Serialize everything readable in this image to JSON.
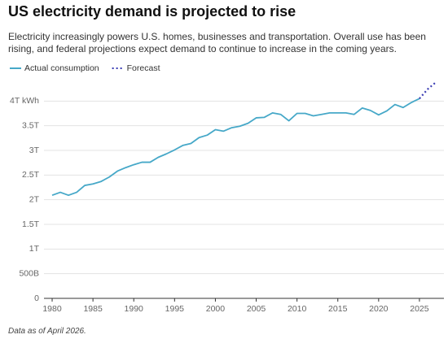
{
  "chart_data": {
    "type": "line",
    "title": "US electricity demand is projected to rise",
    "subtitle": "Electricity increasingly powers U.S. homes, businesses and transportation. Overall use has been rising, and federal projections expect demand to continue to increase in the coming years.",
    "note": "Data as of April 2026.",
    "x": [
      1980,
      1981,
      1982,
      1983,
      1984,
      1985,
      1986,
      1987,
      1988,
      1989,
      1990,
      1991,
      1992,
      1993,
      1994,
      1995,
      1996,
      1997,
      1998,
      1999,
      2000,
      2001,
      2002,
      2003,
      2004,
      2005,
      2006,
      2007,
      2008,
      2009,
      2010,
      2011,
      2012,
      2013,
      2014,
      2015,
      2016,
      2017,
      2018,
      2019,
      2020,
      2021,
      2022,
      2023,
      2024,
      2025,
      2026,
      2027
    ],
    "series": [
      {
        "name": "Actual consumption",
        "color": "#46a8c8",
        "line_style": "solid",
        "values": [
          2.09,
          2.15,
          2.09,
          2.15,
          2.29,
          2.32,
          2.37,
          2.46,
          2.58,
          2.65,
          2.71,
          2.76,
          2.76,
          2.86,
          2.93,
          3.01,
          3.1,
          3.14,
          3.26,
          3.31,
          3.42,
          3.39,
          3.46,
          3.49,
          3.55,
          3.66,
          3.67,
          3.76,
          3.73,
          3.6,
          3.75,
          3.75,
          3.7,
          3.73,
          3.76,
          3.76,
          3.76,
          3.73,
          3.86,
          3.81,
          3.72,
          3.8,
          3.93,
          3.87,
          3.97,
          4.05,
          null,
          null
        ]
      },
      {
        "name": "Forecast",
        "color": "#3a3db4",
        "line_style": "dotted",
        "values": [
          null,
          null,
          null,
          null,
          null,
          null,
          null,
          null,
          null,
          null,
          null,
          null,
          null,
          null,
          null,
          null,
          null,
          null,
          null,
          null,
          null,
          null,
          null,
          null,
          null,
          null,
          null,
          null,
          null,
          null,
          null,
          null,
          null,
          null,
          null,
          null,
          null,
          null,
          null,
          null,
          null,
          null,
          null,
          null,
          null,
          4.05,
          4.24,
          4.38
        ]
      }
    ],
    "xlim": [
      1979,
      2028
    ],
    "xticks": [
      1980,
      1985,
      1990,
      1995,
      2000,
      2005,
      2010,
      2015,
      2020,
      2025
    ],
    "ylim": [
      0,
      4.5
    ],
    "yticks": [
      0,
      {
        "value": 0.5,
        "label": "500B"
      },
      {
        "value": 1,
        "label": "1T"
      },
      {
        "value": 1.5,
        "label": "1.5T"
      },
      {
        "value": 2,
        "label": "2T"
      },
      {
        "value": 2.5,
        "label": "2.5T"
      },
      {
        "value": 3,
        "label": "3T"
      },
      {
        "value": 3.5,
        "label": "3.5T"
      },
      {
        "value": 4,
        "label": "4T kWh"
      }
    ],
    "grid": true
  }
}
